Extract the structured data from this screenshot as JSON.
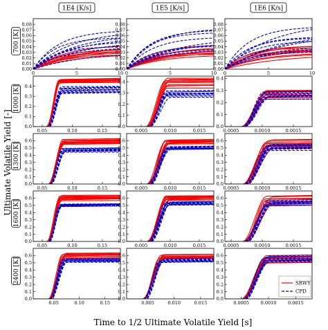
{
  "figure": {
    "ylabel": "Ultimate Volatile Yield [-]",
    "xlabel": "Time to 1/2 Ultimate Volatile Yield [s]",
    "col_titles": [
      "1E4 [K/s]",
      "1E5 [K/s]",
      "1E6 [K/s]"
    ],
    "row_titles": [
      "700 [K]",
      "1000 [K]",
      "1300 [K]",
      "1600 [K]",
      "2400 [K]"
    ],
    "legend": [
      "SRWY",
      "CPD"
    ],
    "colors": {
      "SRWY": "#ff0000",
      "CPD": "#0000cc"
    }
  },
  "chart_data": {
    "type": "line",
    "rows": [
      {
        "temperature": "700 [K]",
        "panels": [
          {
            "rate": "1E4 [K/s]",
            "xlim": [
              0,
              10
            ],
            "ylim": [
              0,
              0.09
            ],
            "xticks": [
              "0",
              "5",
              "10"
            ],
            "yticks": [
              "0.00",
              "0.01",
              "0.02",
              "0.03",
              "0.04",
              "0.05",
              "0.06",
              "0.07",
              "0.08"
            ],
            "kind": "growth",
            "srwy_range": [
              0.025,
              0.045
            ],
            "cpd_range": [
              0.03,
              0.075
            ]
          },
          {
            "rate": "1E5 [K/s]",
            "xlim": [
              0,
              10
            ],
            "ylim": [
              0,
              0.09
            ],
            "xticks": [
              "0",
              "5",
              "10"
            ],
            "yticks": [
              "0.00",
              "0.01",
              "0.02",
              "0.03",
              "0.04",
              "0.05",
              "0.06",
              "0.07",
              "0.08"
            ],
            "kind": "growth",
            "srwy_range": [
              0.025,
              0.045
            ],
            "cpd_range": [
              0.03,
              0.075
            ]
          },
          {
            "rate": "1E6 [K/s]",
            "xlim": [
              0,
              10
            ],
            "ylim": [
              0,
              0.09
            ],
            "xticks": [
              "0",
              "5",
              "10"
            ],
            "yticks": [
              "0.00",
              "0.01",
              "0.02",
              "0.03",
              "0.04",
              "0.05",
              "0.06",
              "0.07",
              "0.08"
            ],
            "kind": "growth",
            "srwy_range": [
              0.025,
              0.045
            ],
            "cpd_range": [
              0.03,
              0.085
            ]
          }
        ]
      },
      {
        "temperature": "1000 [K]",
        "panels": [
          {
            "rate": "1E4 [K/s]",
            "xlim": [
              0.035,
              0.18
            ],
            "ylim": [
              0,
              0.5
            ],
            "xticks": [
              "0.05",
              "0.10",
              "0.15"
            ],
            "yticks": [
              "0.0",
              "0.1",
              "0.2",
              "0.3",
              "0.4"
            ],
            "kind": "sigmoid",
            "rise": [
              0.057,
              0.08
            ],
            "srwy_range": [
              0.43,
              0.47
            ],
            "cpd_range": [
              0.32,
              0.4
            ]
          },
          {
            "rate": "1E5 [K/s]",
            "xlim": [
              0.0025,
              0.0175
            ],
            "ylim": [
              0,
              0.45
            ],
            "xticks": [
              "0.005",
              "0.010",
              "0.015"
            ],
            "yticks": [
              "0.0",
              "0.1",
              "0.2",
              "0.3",
              "0.4"
            ],
            "kind": "sigmoid",
            "rise": [
              0.0058,
              0.0095
            ],
            "srwy_range": [
              0.34,
              0.44
            ],
            "cpd_range": [
              0.26,
              0.32
            ]
          },
          {
            "rate": "1E6 [K/s]",
            "xlim": [
              0.0004,
              0.0018
            ],
            "ylim": [
              0,
              0.42
            ],
            "xticks": [
              "0.0005",
              "0.0010",
              "0.0015"
            ],
            "yticks": [
              "0.0",
              "0.1",
              "0.2",
              "0.3",
              "0.4"
            ],
            "kind": "sigmoid",
            "rise": [
              0.00065,
              0.00105
            ],
            "srwy_range": [
              0.22,
              0.31
            ],
            "cpd_range": [
              0.22,
              0.3
            ]
          }
        ]
      },
      {
        "temperature": "1300 [K]",
        "panels": [
          {
            "rate": "1E4 [K/s]",
            "xlim": [
              0.035,
              0.18
            ],
            "ylim": [
              0,
              0.7
            ],
            "xticks": [
              "0.05",
              "0.10",
              "0.15"
            ],
            "yticks": [
              "0.0",
              "0.1",
              "0.2",
              "0.3",
              "0.4",
              "0.5",
              "0.6"
            ],
            "kind": "sigmoid",
            "rise": [
              0.06,
              0.085
            ],
            "srwy_range": [
              0.55,
              0.62
            ],
            "cpd_range": [
              0.44,
              0.5
            ]
          },
          {
            "rate": "1E5 [K/s]",
            "xlim": [
              0.0025,
              0.0175
            ],
            "ylim": [
              0,
              0.7
            ],
            "xticks": [
              "0.005",
              "0.010",
              "0.015"
            ],
            "yticks": [
              "0.0",
              "0.1",
              "0.2",
              "0.3",
              "0.4",
              "0.5",
              "0.6"
            ],
            "kind": "sigmoid",
            "rise": [
              0.006,
              0.0095
            ],
            "srwy_range": [
              0.55,
              0.62
            ],
            "cpd_range": [
              0.47,
              0.52
            ]
          },
          {
            "rate": "1E6 [K/s]",
            "xlim": [
              0.0004,
              0.0018
            ],
            "ylim": [
              0,
              0.7
            ],
            "xticks": [
              "0.0005",
              "0.0010",
              "0.0015"
            ],
            "yticks": [
              "0.0",
              "0.1",
              "0.2",
              "0.3",
              "0.4",
              "0.5",
              "0.6"
            ],
            "kind": "sigmoid",
            "rise": [
              0.00068,
              0.0011
            ],
            "srwy_range": [
              0.48,
              0.62
            ],
            "cpd_range": [
              0.46,
              0.56
            ]
          }
        ]
      },
      {
        "temperature": "1600 [K]",
        "panels": [
          {
            "rate": "1E4 [K/s]",
            "xlim": [
              0.035,
              0.18
            ],
            "ylim": [
              0,
              0.7
            ],
            "xticks": [
              "0.05",
              "0.10",
              "0.15"
            ],
            "yticks": [
              "0.0",
              "0.1",
              "0.2",
              "0.3",
              "0.4",
              "0.5",
              "0.6"
            ],
            "kind": "sigmoid",
            "rise": [
              0.058,
              0.08
            ],
            "srwy_range": [
              0.56,
              0.64
            ],
            "cpd_range": [
              0.48,
              0.52
            ]
          },
          {
            "rate": "1E5 [K/s]",
            "xlim": [
              0.0025,
              0.0175
            ],
            "ylim": [
              0,
              0.7
            ],
            "xticks": [
              "0.005",
              "0.010",
              "0.015"
            ],
            "yticks": [
              "0.0",
              "0.1",
              "0.2",
              "0.3",
              "0.4",
              "0.5",
              "0.6"
            ],
            "kind": "sigmoid",
            "rise": [
              0.006,
              0.0095
            ],
            "srwy_range": [
              0.56,
              0.63
            ],
            "cpd_range": [
              0.5,
              0.55
            ]
          },
          {
            "rate": "1E6 [K/s]",
            "xlim": [
              0.0004,
              0.0018
            ],
            "ylim": [
              0,
              0.7
            ],
            "xticks": [
              "0.0005",
              "0.0010",
              "0.0015"
            ],
            "yticks": [
              "0.0",
              "0.1",
              "0.2",
              "0.3",
              "0.4",
              "0.5",
              "0.6"
            ],
            "kind": "sigmoid",
            "rise": [
              0.00068,
              0.0011
            ],
            "srwy_range": [
              0.48,
              0.64
            ],
            "cpd_range": [
              0.48,
              0.58
            ]
          }
        ]
      },
      {
        "temperature": "2400 [K]",
        "panels": [
          {
            "rate": "1E4 [K/s]",
            "xlim": [
              0.01,
              0.18
            ],
            "ylim": [
              0,
              0.7
            ],
            "xticks": [
              "0.05",
              "0.10",
              "0.15"
            ],
            "yticks": [
              "0.0",
              "0.1",
              "0.2",
              "0.3",
              "0.4",
              "0.5",
              "0.6"
            ],
            "kind": "sigmoid",
            "rise": [
              0.04,
              0.07
            ],
            "srwy_range": [
              0.56,
              0.64
            ],
            "cpd_range": [
              0.5,
              0.56
            ]
          },
          {
            "rate": "1E5 [K/s]",
            "xlim": [
              0.001,
              0.0175
            ],
            "ylim": [
              0,
              0.7
            ],
            "xticks": [
              "0.005",
              "0.010",
              "0.015"
            ],
            "yticks": [
              "0.0",
              "0.1",
              "0.2",
              "0.3",
              "0.4",
              "0.5",
              "0.6"
            ],
            "kind": "sigmoid",
            "rise": [
              0.004,
              0.0075
            ],
            "srwy_range": [
              0.54,
              0.62
            ],
            "cpd_range": [
              0.5,
              0.56
            ]
          },
          {
            "rate": "1E6 [K/s]",
            "xlim": [
              0.0002,
              0.0018
            ],
            "ylim": [
              0,
              0.7
            ],
            "xticks": [
              "0.0005",
              "0.0010",
              "0.0015"
            ],
            "yticks": [
              "0.0",
              "0.1",
              "0.2",
              "0.3",
              "0.4",
              "0.5",
              "0.6"
            ],
            "kind": "sigmoid",
            "rise": [
              0.0005,
              0.00095
            ],
            "srwy_range": [
              0.48,
              0.6
            ],
            "cpd_range": [
              0.5,
              0.6
            ]
          }
        ]
      }
    ]
  }
}
